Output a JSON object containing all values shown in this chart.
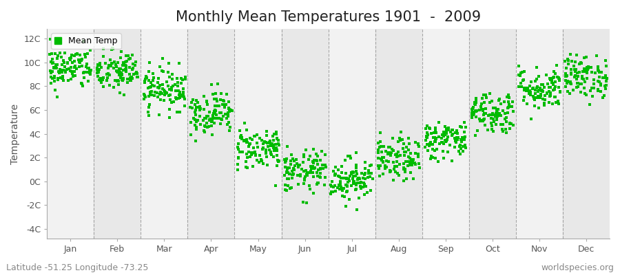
{
  "title": "Monthly Mean Temperatures 1901  -  2009",
  "ylabel": "Temperature",
  "lat_lon_label": "Latitude -51.25 Longitude -73.25",
  "watermark": "worldspecies.org",
  "months": [
    "Jan",
    "Feb",
    "Mar",
    "Apr",
    "May",
    "Jun",
    "Jul",
    "Aug",
    "Sep",
    "Oct",
    "Nov",
    "Dec"
  ],
  "yticks": [
    -4,
    -2,
    0,
    2,
    4,
    6,
    8,
    10,
    12
  ],
  "ytick_labels": [
    "-4C",
    "-2C",
    "0C",
    "2C",
    "4C",
    "6C",
    "8C",
    "10C",
    "12C"
  ],
  "ylim": [
    -4.8,
    12.8
  ],
  "dot_color": "#00bb00",
  "dot_size": 7,
  "legend_label": "Mean Temp",
  "background_color": "#ffffff",
  "plot_bg_light": "#f2f2f2",
  "plot_bg_dark": "#e8e8e8",
  "grid_color": "#888888",
  "num_years": 109,
  "monthly_means": [
    9.5,
    9.2,
    7.8,
    5.8,
    2.8,
    0.8,
    0.2,
    1.8,
    3.5,
    5.8,
    7.8,
    8.8
  ],
  "monthly_stds": [
    0.9,
    0.9,
    0.9,
    0.9,
    0.9,
    0.9,
    0.9,
    0.9,
    0.8,
    0.9,
    0.9,
    0.9
  ],
  "title_fontsize": 15,
  "axis_label_fontsize": 10,
  "tick_fontsize": 9,
  "watermark_fontsize": 9
}
